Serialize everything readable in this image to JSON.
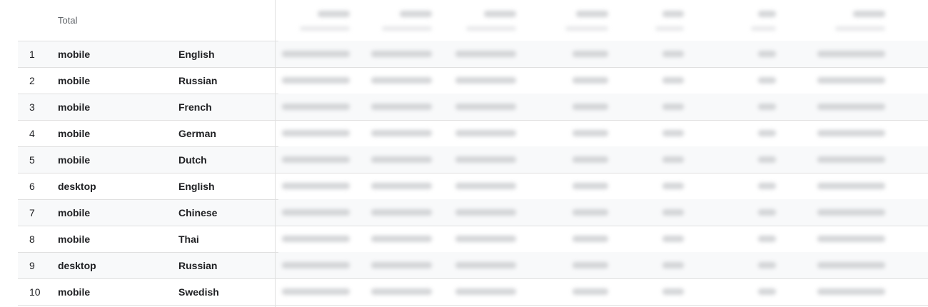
{
  "header": {
    "total_label": "Total"
  },
  "rows": [
    {
      "index": "1",
      "device": "mobile",
      "language": "English"
    },
    {
      "index": "2",
      "device": "mobile",
      "language": "Russian"
    },
    {
      "index": "3",
      "device": "mobile",
      "language": "French"
    },
    {
      "index": "4",
      "device": "mobile",
      "language": "German"
    },
    {
      "index": "5",
      "device": "mobile",
      "language": "Dutch"
    },
    {
      "index": "6",
      "device": "desktop",
      "language": "English"
    },
    {
      "index": "7",
      "device": "mobile",
      "language": "Chinese"
    },
    {
      "index": "8",
      "device": "mobile",
      "language": "Thai"
    },
    {
      "index": "9",
      "device": "desktop",
      "language": "Russian"
    },
    {
      "index": "10",
      "device": "mobile",
      "language": "Swedish"
    }
  ]
}
